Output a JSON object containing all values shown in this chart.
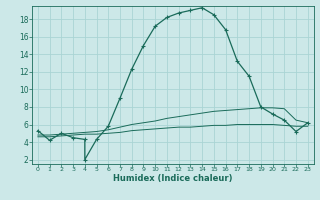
{
  "xlabel": "Humidex (Indice chaleur)",
  "bg_color": "#cce8e8",
  "grid_color": "#aad4d4",
  "line_color": "#1a6b5a",
  "x_ticks": [
    0,
    1,
    2,
    3,
    4,
    5,
    6,
    7,
    8,
    9,
    10,
    11,
    12,
    13,
    14,
    15,
    16,
    17,
    18,
    19,
    20,
    21,
    22,
    23
  ],
  "y_ticks": [
    2,
    4,
    6,
    8,
    10,
    12,
    14,
    16,
    18
  ],
  "ylim": [
    1.5,
    19.5
  ],
  "xlim": [
    -0.5,
    23.5
  ],
  "main_x": [
    0,
    1,
    2,
    3,
    4,
    4,
    5,
    6,
    7,
    8,
    9,
    10,
    11,
    12,
    13,
    14,
    15,
    16,
    17,
    18,
    19,
    20,
    21,
    22,
    23
  ],
  "main_y": [
    5.3,
    4.2,
    5.0,
    4.5,
    4.3,
    2.0,
    4.3,
    5.8,
    9.0,
    12.3,
    15.0,
    17.2,
    18.2,
    18.7,
    19.0,
    19.3,
    18.5,
    16.8,
    13.2,
    11.5,
    8.0,
    7.2,
    6.5,
    5.2,
    6.2
  ],
  "line2_x": [
    0,
    1,
    2,
    3,
    4,
    5,
    6,
    7,
    8,
    9,
    10,
    11,
    12,
    13,
    14,
    15,
    16,
    17,
    18,
    19,
    20,
    21,
    22,
    23
  ],
  "line2_y": [
    4.8,
    4.8,
    4.9,
    5.0,
    5.1,
    5.2,
    5.4,
    5.7,
    6.0,
    6.2,
    6.4,
    6.7,
    6.9,
    7.1,
    7.3,
    7.5,
    7.6,
    7.7,
    7.8,
    7.9,
    7.9,
    7.8,
    6.5,
    6.2
  ],
  "line3_x": [
    0,
    1,
    2,
    3,
    4,
    5,
    6,
    7,
    8,
    9,
    10,
    11,
    12,
    13,
    14,
    15,
    16,
    17,
    18,
    19,
    20,
    21,
    22,
    23
  ],
  "line3_y": [
    4.6,
    4.6,
    4.7,
    4.8,
    4.9,
    4.9,
    5.0,
    5.1,
    5.3,
    5.4,
    5.5,
    5.6,
    5.7,
    5.7,
    5.8,
    5.9,
    5.9,
    6.0,
    6.0,
    6.0,
    6.0,
    5.9,
    5.8,
    5.8
  ],
  "xlabel_fontsize": 6,
  "tick_fontsize_x": 4.5,
  "tick_fontsize_y": 5.5
}
